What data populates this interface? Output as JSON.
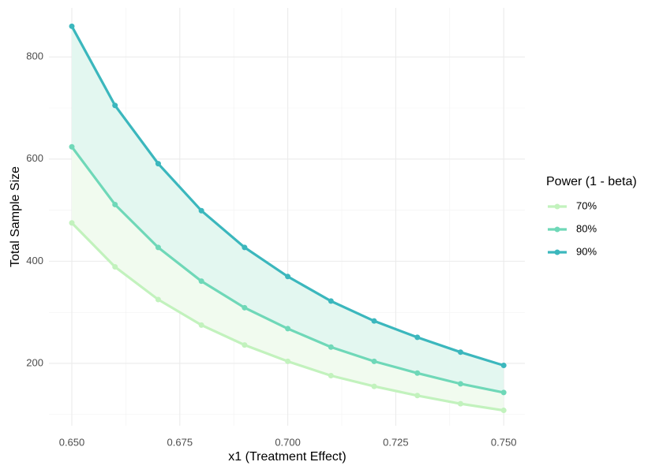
{
  "chart_data": {
    "type": "line",
    "x_label": "x1 (Treatment Effect)",
    "y_label": "Total Sample Size",
    "legend_title": "Power (1 - beta)",
    "legend": "right",
    "grid": true,
    "x": [
      0.65,
      0.66,
      0.67,
      0.68,
      0.69,
      0.7,
      0.71,
      0.72,
      0.73,
      0.74,
      0.75
    ],
    "series": [
      {
        "name": "70%",
        "color": "#c2f2bd",
        "values": [
          475,
          389,
          325,
          275,
          236,
          204,
          176,
          155,
          137,
          121,
          108
        ]
      },
      {
        "name": "80%",
        "color": "#6fd8b8",
        "fill": "#f1fbef",
        "values": [
          624,
          511,
          427,
          361,
          309,
          268,
          232,
          204,
          181,
          160,
          143
        ]
      },
      {
        "name": "90%",
        "color": "#3bb7bd",
        "fill": "#e3f7f0",
        "values": [
          860,
          705,
          591,
          499,
          427,
          370,
          322,
          283,
          251,
          222,
          196
        ]
      }
    ],
    "xlim": [
      0.6447,
      0.7549
    ],
    "xticks": [
      {
        "value": 0.65,
        "label": "0.650"
      },
      {
        "value": 0.675,
        "label": "0.675"
      },
      {
        "value": 0.7,
        "label": "0.700"
      },
      {
        "value": 0.725,
        "label": "0.725"
      },
      {
        "value": 0.75,
        "label": "0.750"
      }
    ],
    "ylim": [
      78,
      896
    ],
    "yticks": [
      200,
      400,
      600,
      800
    ]
  }
}
